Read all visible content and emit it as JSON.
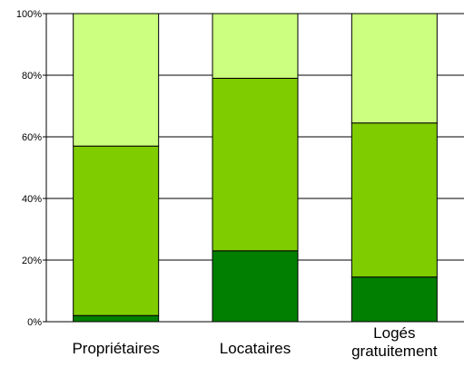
{
  "chart_data": {
    "type": "bar",
    "stacked": true,
    "percent_stacked": true,
    "categories": [
      "Propriétaires",
      "Locataires",
      "Logés gratuitement"
    ],
    "category_label_lines": [
      [
        "Propriétaires"
      ],
      [
        "Locataires"
      ],
      [
        "Logés",
        "gratuitement"
      ]
    ],
    "series": [
      {
        "values": [
          2,
          23,
          14.5
        ],
        "color": "#007f00"
      },
      {
        "values": [
          55,
          56,
          50
        ],
        "color": "#7fcc00"
      },
      {
        "values": [
          43,
          21,
          35.5
        ],
        "color": "#ccff7f"
      }
    ],
    "ylim": [
      0,
      100
    ],
    "y_ticks": [
      0,
      20,
      40,
      60,
      80,
      100
    ],
    "y_tick_labels": [
      "0%",
      "20%",
      "40%",
      "60%",
      "80%",
      "100%"
    ],
    "grid": "horizontal",
    "legend": "none"
  }
}
